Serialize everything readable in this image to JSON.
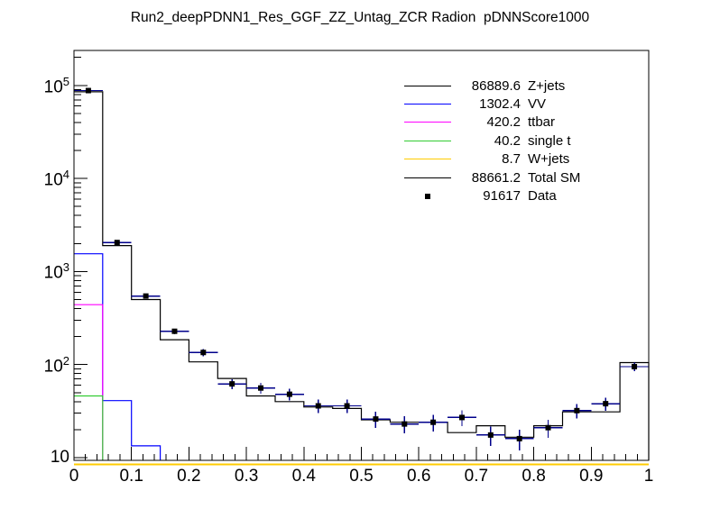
{
  "title": "Run2_deepPDNN1_Res_GGF_ZZ_Untag_ZCR Radion  pDNNScore1000",
  "legend": {
    "entries": [
      {
        "value": "86889.6",
        "label": "Z+jets",
        "color": "#000000",
        "sample": "line"
      },
      {
        "value": "1302.4",
        "label": "VV",
        "color": "#0000ff",
        "sample": "line"
      },
      {
        "value": "420.2",
        "label": "ttbar",
        "color": "#ff00ff",
        "sample": "line"
      },
      {
        "value": "40.2",
        "label": "single t",
        "color": "#33cc33",
        "sample": "line"
      },
      {
        "value": "8.7",
        "label": "W+jets",
        "color": "#ffcc00",
        "sample": "line"
      },
      {
        "value": "88661.2",
        "label": "Total SM",
        "color": "#000000",
        "sample": "line"
      },
      {
        "value": "91617",
        "label": "Data",
        "color": "#000000",
        "sample": "marker"
      }
    ]
  },
  "chart_data": {
    "type": "bar",
    "subtype": "stacked-step-histogram-log-y",
    "title": "Run2_deepPDNN1_Res_GGF_ZZ_Untag_ZCR Radion  pDNNScore1000",
    "xlabel": "",
    "ylabel": "",
    "x_range": [
      0,
      1
    ],
    "y_scale": "log",
    "y_range": [
      9.2,
      235000
    ],
    "grid": false,
    "legend_position": "top-right",
    "n_bins": 20,
    "bin_width": 0.05,
    "x_tick_labels": [
      "0",
      "0.1",
      "0.2",
      "0.3",
      "0.4",
      "0.5",
      "0.6",
      "0.7",
      "0.8",
      "0.9",
      "1"
    ],
    "x_minor_tick_step": 0.02,
    "y_ticks": [
      {
        "value": 10,
        "base": "10",
        "exp": ""
      },
      {
        "value": 100,
        "base": "10",
        "exp": "2"
      },
      {
        "value": 1000,
        "base": "10",
        "exp": "3"
      },
      {
        "value": 10000,
        "base": "10",
        "exp": "4"
      },
      {
        "value": 100000,
        "base": "10",
        "exp": "5"
      }
    ],
    "series": [
      {
        "name": "Total SM (stack top, = Z+jets stack)",
        "color": "#000000",
        "total": 88661.2,
        "values": [
          85400,
          1900,
          500,
          185,
          107,
          71,
          46,
          40,
          35,
          33.8,
          25.5,
          24,
          24,
          18.6,
          22,
          16.6,
          22,
          31,
          31,
          105
        ]
      },
      {
        "name": "VV stack (VV+ttbar+single t+W+jets)",
        "color": "#0000ff",
        "total": 1302.4,
        "values": [
          1550,
          41,
          13.4,
          0,
          0,
          0,
          0,
          0,
          0,
          0,
          0,
          0,
          0,
          0,
          0,
          0,
          0,
          0,
          0,
          0
        ]
      },
      {
        "name": "ttbar stack (ttbar+single t+W+jets)",
        "color": "#ff00ff",
        "total": 420.2,
        "values": [
          440,
          0,
          0,
          0,
          0,
          0,
          0,
          0,
          0,
          0,
          0,
          0,
          0,
          0,
          0,
          0,
          0,
          0,
          0,
          0
        ]
      },
      {
        "name": "single t stack (single t+W+jets)",
        "color": "#33cc33",
        "total": 40.2,
        "values": [
          46,
          0,
          0,
          0,
          0,
          0,
          0,
          0,
          0,
          0,
          0,
          0,
          0,
          0,
          0,
          0,
          0,
          0,
          0,
          0
        ]
      },
      {
        "name": "W+jets (below y-axis minimum, drawn along bottom)",
        "color": "#ffcc00",
        "total": 8.7,
        "below_range": true,
        "values": [
          0.4,
          0.4,
          0.4,
          0.4,
          0.4,
          0.4,
          0.4,
          0.4,
          0.4,
          0.4,
          0.4,
          0.4,
          0.4,
          0.4,
          0.4,
          0.4,
          0.4,
          0.4,
          0.4,
          0.4
        ]
      }
    ],
    "data_points": {
      "name": "Data",
      "total": 91617,
      "marker": "square",
      "marker_color": "#000000",
      "error_color": "#00008b",
      "values": [
        88000,
        2050,
        545,
        228,
        135,
        62,
        56,
        48,
        36,
        36,
        26,
        23,
        24,
        27,
        17.5,
        16,
        21,
        32,
        38,
        95
      ]
    }
  }
}
